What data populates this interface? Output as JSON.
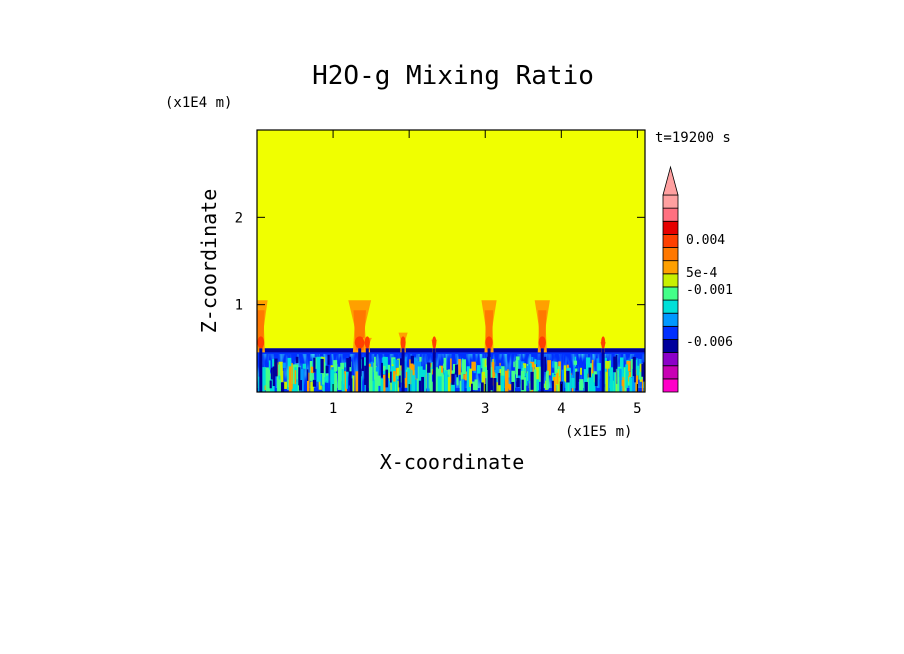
{
  "chart_data": {
    "type": "heatmap",
    "title": "H2O-g Mixing Ratio",
    "xlabel": "X-coordinate",
    "ylabel": "Z-coordinate",
    "x_scale_label": "(x1E5 m)",
    "y_scale_label": "(x1E4 m)",
    "time_label": "t=19200 s",
    "xlim": [
      0,
      5.1
    ],
    "ylim": [
      0,
      3.0
    ],
    "x_ticks": [
      1,
      2,
      3,
      4,
      5
    ],
    "y_ticks": [
      1,
      2
    ],
    "background_color": "#f0ff00",
    "boundary_layer_top": 0.5,
    "plumes": [
      {
        "x": 0.05,
        "top": 1.05,
        "half_width": 0.09
      },
      {
        "x": 1.35,
        "top": 1.05,
        "half_width": 0.15
      },
      {
        "x": 1.45,
        "top": 0.62,
        "half_width": 0.06
      },
      {
        "x": 1.92,
        "top": 0.68,
        "half_width": 0.06
      },
      {
        "x": 3.05,
        "top": 1.05,
        "half_width": 0.1
      },
      {
        "x": 3.75,
        "top": 1.05,
        "half_width": 0.1
      },
      {
        "x": 2.33,
        "top": 0.6,
        "half_width": 0.04
      },
      {
        "x": 4.55,
        "top": 0.57,
        "half_width": 0.04
      }
    ],
    "colorbar": {
      "colors": [
        "#ff00c8",
        "#c800b4",
        "#8c00c8",
        "#00009c",
        "#0030ff",
        "#0098ff",
        "#00e0d8",
        "#44ff88",
        "#c8f000",
        "#ffa000",
        "#ff7800",
        "#ff4000",
        "#e60000",
        "#ff7080",
        "#ffa0a0"
      ],
      "labels": [
        "0.004",
        "5e-4",
        "-0.001",
        "-0.006"
      ]
    }
  }
}
